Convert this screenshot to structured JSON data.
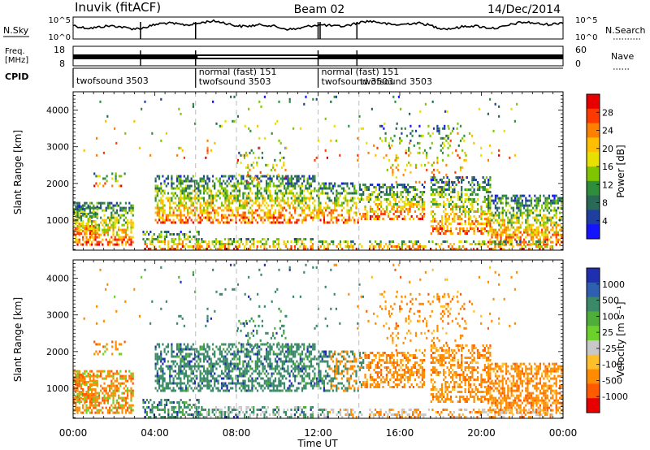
{
  "header": {
    "radar": "Inuvik (fitACF)",
    "beam": "Beam 02",
    "date": "14/Dec/2014"
  },
  "top_panels": {
    "nsky_label": "N.Sky",
    "nsky_ticks": [
      "10^5",
      "10^0"
    ],
    "nsearch_label": "N.Search",
    "nsearch_ticks": [
      "10^5",
      "10^0"
    ],
    "freq_label_1": "Freq.",
    "freq_label_2": "[MHz]",
    "freq_ticks": [
      "18",
      "8"
    ],
    "nave_label": "Nave",
    "nave_ticks": [
      "60",
      "0"
    ],
    "cpid_label": "CPID"
  },
  "cpid_segments": [
    {
      "start_hour": 0.0,
      "label": "twofsound 3503"
    },
    {
      "start_hour": 6.0,
      "label": "normal (fast) 151"
    },
    {
      "start_hour": 6.0,
      "label": "twofsound 3503"
    },
    {
      "start_hour": 12.0,
      "label": "normal (fast) 151"
    },
    {
      "start_hour": 12.0,
      "label": "twofsound 3503"
    },
    {
      "start_hour": 13.9,
      "label": "twofsound 3503"
    }
  ],
  "chart_data": [
    {
      "type": "heatmap",
      "quantity": "Power",
      "xlabel": "Time UT",
      "ylabel": "Slant Range [km]",
      "x_ticks": [
        "00:00",
        "04:00",
        "08:00",
        "12:00",
        "16:00",
        "20:00",
        "00:00"
      ],
      "y_ticks": [
        1000,
        2000,
        3000,
        4000
      ],
      "xlim_hours": [
        0,
        24
      ],
      "ylim_km": [
        180,
        4500
      ],
      "colorbar_label": "Power [dB]",
      "colorbar_ticks": [
        "28",
        "24",
        "20",
        "16",
        "12",
        "8",
        "4"
      ],
      "colorbar_colors": [
        "#e80000",
        "#ff3a00",
        "#ff7f00",
        "#ffbf00",
        "#e7e000",
        "#7fc600",
        "#2f8e3b",
        "#286a55",
        "#1f3fa0",
        "#1414ff"
      ]
    },
    {
      "type": "heatmap",
      "quantity": "Velocity",
      "xlabel": "Time UT",
      "ylabel": "Slant Range [km]",
      "x_ticks": [
        "00:00",
        "04:00",
        "08:00",
        "12:00",
        "16:00",
        "20:00",
        "00:00"
      ],
      "y_ticks": [
        1000,
        2000,
        3000,
        4000
      ],
      "xlim_hours": [
        0,
        24
      ],
      "ylim_km": [
        180,
        4500
      ],
      "colorbar_label": "Velocity [m s⁻¹]",
      "colorbar_ticks": [
        "1000",
        "500",
        "100",
        "25",
        "-25",
        "-100",
        "-500",
        "-1000"
      ],
      "colorbar_colors": [
        "#1f2fb0",
        "#2f5fb0",
        "#3a8a6a",
        "#4fae3a",
        "#6ed02a",
        "#c8c8c8",
        "#ffbf2a",
        "#ff8c00",
        "#ff5a00",
        "#e80000"
      ]
    }
  ]
}
